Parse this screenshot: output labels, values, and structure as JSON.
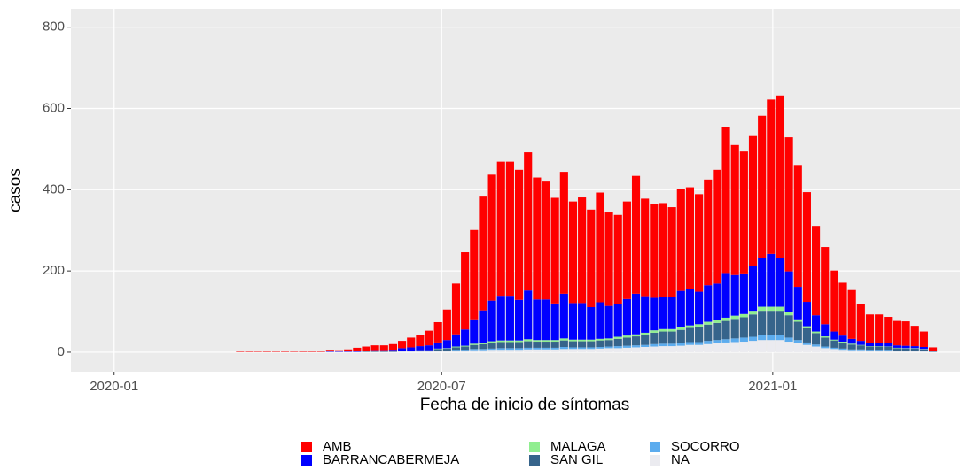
{
  "chart_data": {
    "type": "stacked-bar",
    "x_label": "Fecha de inicio de síntomas",
    "y_label": "casos",
    "x": [
      70,
      75,
      80,
      85,
      90,
      95,
      100,
      105,
      110,
      115,
      120,
      125,
      130,
      135,
      140,
      145,
      150,
      155,
      160,
      165,
      170,
      175,
      180,
      185,
      190,
      195,
      200,
      205,
      210,
      215,
      220,
      225,
      230,
      235,
      240,
      245,
      250,
      255,
      260,
      265,
      270,
      275,
      280,
      285,
      290,
      295,
      300,
      305,
      310,
      315,
      320,
      325,
      330,
      335,
      340,
      345,
      350,
      355,
      360,
      365,
      370,
      375,
      380,
      385,
      390,
      395,
      400,
      405,
      410,
      415,
      420,
      425,
      430,
      435,
      440,
      445,
      450,
      455
    ],
    "xlim": [
      -24,
      470
    ],
    "xticks": [
      {
        "value": 0,
        "label": "2020-01"
      },
      {
        "value": 182,
        "label": "2020-07"
      },
      {
        "value": 366,
        "label": "2021-01"
      }
    ],
    "ylim": [
      -48,
      845
    ],
    "yticks": [
      0,
      200,
      400,
      600,
      800
    ],
    "grid": true,
    "legend": "bottom",
    "series": [
      {
        "name": "AMB",
        "color": "#ff0000",
        "values": [
          2,
          2,
          1,
          2,
          1,
          2,
          1,
          2,
          3,
          2,
          4,
          3,
          5,
          8,
          10,
          12,
          12,
          14,
          18,
          24,
          28,
          36,
          50,
          75,
          125,
          190,
          220,
          280,
          310,
          330,
          330,
          320,
          340,
          300,
          290,
          260,
          300,
          250,
          260,
          240,
          270,
          230,
          220,
          240,
          290,
          240,
          230,
          230,
          220,
          250,
          250,
          240,
          260,
          280,
          360,
          320,
          300,
          320,
          350,
          380,
          400,
          330,
          300,
          270,
          220,
          190,
          150,
          130,
          120,
          90,
          70,
          70,
          65,
          60,
          60,
          50,
          38,
          8
        ]
      },
      {
        "name": "BARRANCABERMEJA",
        "color": "#0000ff",
        "values": [
          0,
          0,
          0,
          0,
          0,
          0,
          0,
          0,
          0,
          0,
          1,
          1,
          1,
          2,
          2,
          3,
          3,
          4,
          6,
          8,
          10,
          12,
          15,
          20,
          30,
          40,
          60,
          80,
          100,
          110,
          110,
          100,
          120,
          100,
          100,
          90,
          110,
          90,
          90,
          80,
          90,
          80,
          80,
          90,
          100,
          90,
          80,
          80,
          80,
          90,
          90,
          80,
          90,
          90,
          110,
          100,
          100,
          110,
          120,
          130,
          120,
          100,
          80,
          60,
          40,
          30,
          20,
          15,
          12,
          10,
          8,
          8,
          8,
          6,
          6,
          5,
          5,
          2
        ]
      },
      {
        "name": "MALAGA",
        "color": "#90ee90",
        "values": [
          0,
          0,
          0,
          0,
          0,
          0,
          0,
          0,
          0,
          0,
          0,
          0,
          0,
          0,
          0,
          0,
          0,
          0,
          0,
          0,
          0,
          0,
          1,
          1,
          2,
          2,
          3,
          3,
          4,
          4,
          4,
          4,
          5,
          4,
          4,
          4,
          5,
          4,
          4,
          4,
          4,
          4,
          5,
          5,
          5,
          5,
          6,
          6,
          6,
          6,
          6,
          6,
          7,
          7,
          8,
          8,
          8,
          9,
          10,
          10,
          10,
          8,
          6,
          5,
          4,
          3,
          2,
          2,
          2,
          1,
          1,
          1,
          1,
          1,
          1,
          1,
          1,
          0
        ]
      },
      {
        "name": "SAN GIL",
        "color": "#36648b",
        "values": [
          0,
          0,
          0,
          0,
          0,
          0,
          0,
          0,
          0,
          0,
          0,
          0,
          0,
          0,
          1,
          1,
          1,
          1,
          2,
          2,
          3,
          3,
          4,
          5,
          6,
          8,
          10,
          12,
          14,
          15,
          15,
          15,
          16,
          15,
          15,
          15,
          16,
          15,
          15,
          15,
          16,
          16,
          18,
          20,
          22,
          25,
          28,
          30,
          30,
          32,
          35,
          38,
          40,
          42,
          45,
          48,
          50,
          55,
          60,
          60,
          60,
          55,
          45,
          35,
          28,
          22,
          18,
          15,
          12,
          10,
          8,
          8,
          7,
          6,
          5,
          5,
          4,
          1
        ]
      },
      {
        "name": "SOCORRO",
        "color": "#5cacee",
        "values": [
          0,
          0,
          0,
          0,
          0,
          0,
          0,
          0,
          0,
          0,
          0,
          0,
          0,
          0,
          0,
          0,
          0,
          0,
          0,
          0,
          0,
          0,
          1,
          1,
          2,
          2,
          3,
          3,
          3,
          4,
          4,
          4,
          4,
          4,
          4,
          4,
          5,
          4,
          4,
          4,
          4,
          4,
          5,
          5,
          5,
          5,
          6,
          6,
          6,
          7,
          7,
          7,
          8,
          8,
          8,
          9,
          10,
          10,
          12,
          12,
          12,
          10,
          8,
          6,
          5,
          4,
          3,
          3,
          2,
          2,
          2,
          2,
          2,
          1,
          1,
          1,
          1,
          0
        ]
      },
      {
        "name": "NA",
        "color": "#ebebf0",
        "values": [
          1,
          1,
          1,
          1,
          1,
          1,
          1,
          1,
          1,
          1,
          1,
          1,
          1,
          1,
          1,
          1,
          1,
          1,
          2,
          2,
          2,
          2,
          3,
          3,
          4,
          4,
          5,
          5,
          6,
          6,
          6,
          6,
          7,
          7,
          7,
          7,
          8,
          8,
          8,
          8,
          9,
          10,
          10,
          11,
          12,
          13,
          14,
          15,
          15,
          16,
          18,
          18,
          20,
          22,
          24,
          25,
          26,
          28,
          30,
          30,
          30,
          26,
          22,
          18,
          14,
          10,
          8,
          6,
          5,
          5,
          4,
          4,
          4,
          3,
          3,
          3,
          2,
          1
        ]
      }
    ]
  }
}
